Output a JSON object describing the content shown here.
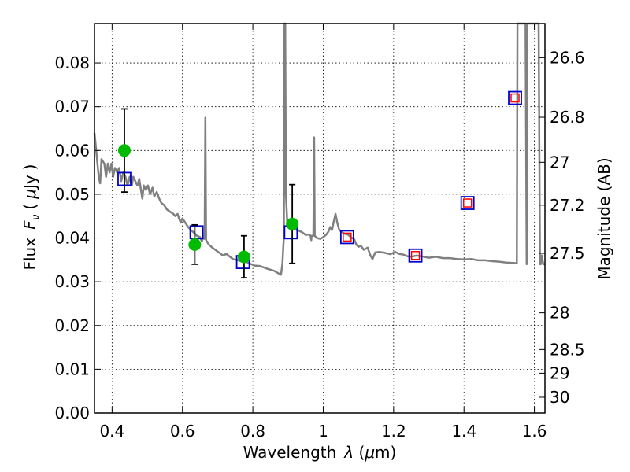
{
  "chart_data": {
    "type": "scatter",
    "xlabel": {
      "text": "Wavelength",
      "symbol": "λ",
      "unit": "μm"
    },
    "ylabel": {
      "text": "Flux",
      "symbol": "F",
      "subscript": "ν",
      "unit": "μJy"
    },
    "ylabel_right": "Magnitude (AB)",
    "xlim": [
      0.35,
      1.63
    ],
    "ylim": [
      0.0,
      0.089
    ],
    "grid": true,
    "x_ticks": [
      {
        "value": 0.4,
        "label": "0.4"
      },
      {
        "value": 0.6,
        "label": "0.6"
      },
      {
        "value": 0.8,
        "label": "0.8"
      },
      {
        "value": 1.0,
        "label": "1"
      },
      {
        "value": 1.2,
        "label": "1.2"
      },
      {
        "value": 1.4,
        "label": "1.4"
      },
      {
        "value": 1.6,
        "label": "1.6"
      }
    ],
    "y_ticks": [
      {
        "value": 0.0,
        "label": "0.00"
      },
      {
        "value": 0.01,
        "label": "0.01"
      },
      {
        "value": 0.02,
        "label": "0.02"
      },
      {
        "value": 0.03,
        "label": "0.03"
      },
      {
        "value": 0.04,
        "label": "0.04"
      },
      {
        "value": 0.05,
        "label": "0.05"
      },
      {
        "value": 0.06,
        "label": "0.06"
      },
      {
        "value": 0.07,
        "label": "0.07"
      },
      {
        "value": 0.08,
        "label": "0.08"
      }
    ],
    "right_ticks": [
      {
        "flux": 0.0812,
        "label": "26.6"
      },
      {
        "flux": 0.0676,
        "label": "26.8"
      },
      {
        "flux": 0.0573,
        "label": "27"
      },
      {
        "flux": 0.0475,
        "label": "27.2"
      },
      {
        "flux": 0.0365,
        "label": "27.5"
      },
      {
        "flux": 0.0229,
        "label": "28"
      },
      {
        "flux": 0.0145,
        "label": "28.5"
      },
      {
        "flux": 0.0091,
        "label": "29"
      },
      {
        "flux": 0.0036,
        "label": "30"
      }
    ],
    "model_spectrum": {
      "color": "#808080",
      "points": [
        [
          0.35,
          0.064
        ],
        [
          0.355,
          0.06
        ],
        [
          0.362,
          0.054
        ],
        [
          0.366,
          0.0525
        ],
        [
          0.37,
          0.058
        ],
        [
          0.378,
          0.057
        ],
        [
          0.383,
          0.054
        ],
        [
          0.388,
          0.057
        ],
        [
          0.393,
          0.055
        ],
        [
          0.398,
          0.057
        ],
        [
          0.403,
          0.054
        ],
        [
          0.408,
          0.056
        ],
        [
          0.414,
          0.055
        ],
        [
          0.42,
          0.056
        ],
        [
          0.426,
          0.053
        ],
        [
          0.432,
          0.055
        ],
        [
          0.438,
          0.054
        ],
        [
          0.444,
          0.052
        ],
        [
          0.45,
          0.054
        ],
        [
          0.456,
          0.052
        ],
        [
          0.46,
          0.054
        ],
        [
          0.466,
          0.053
        ],
        [
          0.472,
          0.052
        ],
        [
          0.477,
          0.0535
        ],
        [
          0.482,
          0.051
        ],
        [
          0.486,
          0.049
        ],
        [
          0.49,
          0.052
        ],
        [
          0.496,
          0.051
        ],
        [
          0.502,
          0.052
        ],
        [
          0.508,
          0.05
        ],
        [
          0.515,
          0.0515
        ],
        [
          0.52,
          0.0495
        ],
        [
          0.527,
          0.0505
        ],
        [
          0.534,
          0.049
        ],
        [
          0.54,
          0.048
        ],
        [
          0.548,
          0.0475
        ],
        [
          0.556,
          0.0465
        ],
        [
          0.565,
          0.046
        ],
        [
          0.574,
          0.0455
        ],
        [
          0.58,
          0.045
        ],
        [
          0.586,
          0.0455
        ],
        [
          0.59,
          0.0445
        ],
        [
          0.595,
          0.0435
        ],
        [
          0.6,
          0.0445
        ],
        [
          0.608,
          0.0435
        ],
        [
          0.616,
          0.0425
        ],
        [
          0.624,
          0.0418
        ],
        [
          0.633,
          0.0412
        ],
        [
          0.641,
          0.0405
        ],
        [
          0.65,
          0.0402
        ],
        [
          0.655,
          0.0392
        ],
        [
          0.658,
          0.04
        ],
        [
          0.663,
          0.0398
        ],
        [
          0.665,
          0.0675
        ],
        [
          0.667,
          0.0395
        ],
        [
          0.675,
          0.0385
        ],
        [
          0.685,
          0.0378
        ],
        [
          0.695,
          0.0372
        ],
        [
          0.705,
          0.0366
        ],
        [
          0.715,
          0.036
        ],
        [
          0.725,
          0.0364
        ],
        [
          0.735,
          0.0357
        ],
        [
          0.745,
          0.0351
        ],
        [
          0.755,
          0.035
        ],
        [
          0.765,
          0.0347
        ],
        [
          0.775,
          0.0348
        ],
        [
          0.79,
          0.0342
        ],
        [
          0.805,
          0.0337
        ],
        [
          0.82,
          0.0336
        ],
        [
          0.84,
          0.033
        ],
        [
          0.86,
          0.0325
        ],
        [
          0.875,
          0.0318
        ],
        [
          0.88,
          0.0316
        ],
        [
          0.884,
          0.034
        ],
        [
          0.888,
          0.04
        ],
        [
          0.89,
          0.089
        ],
        [
          0.892,
          0.089
        ],
        [
          0.894,
          0.05
        ],
        [
          0.898,
          0.043
        ],
        [
          0.905,
          0.0425
        ],
        [
          0.912,
          0.0422
        ],
        [
          0.92,
          0.042
        ],
        [
          0.93,
          0.0417
        ],
        [
          0.94,
          0.0413
        ],
        [
          0.95,
          0.0407
        ],
        [
          0.958,
          0.0408
        ],
        [
          0.964,
          0.0405
        ],
        [
          0.966,
          0.0395
        ],
        [
          0.967,
          0.0405
        ],
        [
          0.972,
          0.0405
        ],
        [
          0.974,
          0.063
        ],
        [
          0.976,
          0.0405
        ],
        [
          0.982,
          0.04
        ],
        [
          0.992,
          0.0398
        ],
        [
          1.0,
          0.0402
        ],
        [
          1.008,
          0.0407
        ],
        [
          1.015,
          0.0415
        ],
        [
          1.02,
          0.0425
        ],
        [
          1.025,
          0.0418
        ],
        [
          1.03,
          0.0438
        ],
        [
          1.035,
          0.0455
        ],
        [
          1.04,
          0.0435
        ],
        [
          1.045,
          0.042
        ],
        [
          1.05,
          0.0415
        ],
        [
          1.06,
          0.041
        ],
        [
          1.07,
          0.0408
        ],
        [
          1.078,
          0.0402
        ],
        [
          1.088,
          0.0397
        ],
        [
          1.094,
          0.0385
        ],
        [
          1.1,
          0.038
        ],
        [
          1.107,
          0.0382
        ],
        [
          1.115,
          0.0373
        ],
        [
          1.12,
          0.0375
        ],
        [
          1.126,
          0.0378
        ],
        [
          1.134,
          0.036
        ],
        [
          1.14,
          0.0352
        ],
        [
          1.148,
          0.0367
        ],
        [
          1.16,
          0.0368
        ],
        [
          1.175,
          0.0366
        ],
        [
          1.19,
          0.0363
        ],
        [
          1.205,
          0.0368
        ],
        [
          1.215,
          0.0364
        ],
        [
          1.228,
          0.0362
        ],
        [
          1.24,
          0.0358
        ],
        [
          1.25,
          0.0357
        ],
        [
          1.265,
          0.036
        ],
        [
          1.28,
          0.0358
        ],
        [
          1.3,
          0.0355
        ],
        [
          1.32,
          0.0357
        ],
        [
          1.34,
          0.0354
        ],
        [
          1.36,
          0.0354
        ],
        [
          1.38,
          0.0352
        ],
        [
          1.4,
          0.0351
        ],
        [
          1.42,
          0.0352
        ],
        [
          1.44,
          0.0349
        ],
        [
          1.46,
          0.0349
        ],
        [
          1.48,
          0.0347
        ],
        [
          1.5,
          0.0346
        ],
        [
          1.52,
          0.0344
        ],
        [
          1.54,
          0.0343
        ],
        [
          1.55,
          0.0342
        ],
        [
          1.552,
          0.089
        ],
        [
          1.558,
          0.089
        ],
        [
          1.575,
          0.089
        ],
        [
          1.578,
          0.034
        ],
        [
          1.58,
          0.089
        ],
        [
          1.584,
          0.089
        ],
        [
          1.6,
          0.089
        ],
        [
          1.612,
          0.089
        ],
        [
          1.616,
          0.034
        ],
        [
          1.618,
          0.034
        ],
        [
          1.621,
          0.036
        ],
        [
          1.625,
          0.034
        ],
        [
          1.63,
          0.034
        ]
      ]
    },
    "observed": {
      "color": "#00bb00",
      "points": [
        {
          "x": 0.435,
          "y": 0.06,
          "err": 0.0095
        },
        {
          "x": 0.635,
          "y": 0.0385,
          "err": 0.0045
        },
        {
          "x": 0.775,
          "y": 0.0357,
          "err": 0.0048
        },
        {
          "x": 0.912,
          "y": 0.0432,
          "err": 0.009
        }
      ]
    },
    "model_photometry": {
      "outer_color": "#0000cc",
      "inner_color": "#ff0000",
      "points": [
        {
          "x": 0.435,
          "y": 0.0535,
          "inner": false
        },
        {
          "x": 0.64,
          "y": 0.0413,
          "inner": false
        },
        {
          "x": 0.772,
          "y": 0.0345,
          "inner": false
        },
        {
          "x": 0.908,
          "y": 0.0413,
          "inner": false
        },
        {
          "x": 1.068,
          "y": 0.0402,
          "inner": true
        },
        {
          "x": 1.262,
          "y": 0.036,
          "inner": true
        },
        {
          "x": 1.41,
          "y": 0.048,
          "inner": true
        },
        {
          "x": 1.545,
          "y": 0.072,
          "inner": true
        }
      ]
    }
  }
}
